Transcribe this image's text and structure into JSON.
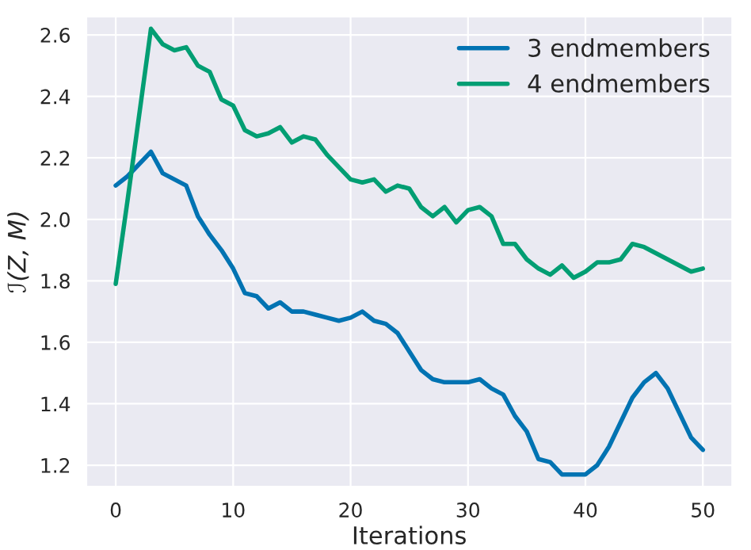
{
  "chart_data": {
    "type": "line",
    "xlabel": "Iterations",
    "ylabel": "ℐ(Z, M)",
    "x": [
      0,
      1,
      2,
      3,
      4,
      5,
      6,
      7,
      8,
      9,
      10,
      11,
      12,
      13,
      14,
      15,
      16,
      17,
      18,
      19,
      20,
      21,
      22,
      23,
      24,
      25,
      26,
      27,
      28,
      29,
      30,
      31,
      32,
      33,
      34,
      35,
      36,
      37,
      38,
      39,
      40,
      41,
      42,
      43,
      44,
      45,
      46,
      47,
      48,
      49,
      50
    ],
    "series": [
      {
        "name": "3 endmembers",
        "color": "#0173b2",
        "values": [
          2.11,
          2.14,
          2.18,
          2.22,
          2.15,
          2.13,
          2.11,
          2.01,
          1.95,
          1.9,
          1.84,
          1.76,
          1.75,
          1.71,
          1.73,
          1.7,
          1.7,
          1.69,
          1.68,
          1.67,
          1.68,
          1.7,
          1.67,
          1.66,
          1.63,
          1.57,
          1.51,
          1.48,
          1.47,
          1.47,
          1.47,
          1.48,
          1.45,
          1.43,
          1.36,
          1.31,
          1.22,
          1.21,
          1.17,
          1.17,
          1.17,
          1.2,
          1.26,
          1.34,
          1.42,
          1.47,
          1.5,
          1.45,
          1.37,
          1.29,
          1.25
        ]
      },
      {
        "name": "4 endmembers",
        "color": "#029e73",
        "values": [
          1.79,
          2.06,
          2.34,
          2.62,
          2.57,
          2.55,
          2.56,
          2.5,
          2.48,
          2.39,
          2.37,
          2.29,
          2.27,
          2.28,
          2.3,
          2.25,
          2.27,
          2.26,
          2.21,
          2.17,
          2.13,
          2.12,
          2.13,
          2.09,
          2.11,
          2.1,
          2.04,
          2.01,
          2.04,
          1.99,
          2.03,
          2.04,
          2.01,
          1.92,
          1.92,
          1.87,
          1.84,
          1.82,
          1.85,
          1.81,
          1.83,
          1.86,
          1.86,
          1.87,
          1.92,
          1.91,
          1.89,
          1.87,
          1.85,
          1.83,
          1.84
        ]
      }
    ],
    "xlim": [
      -2.5,
      52.5
    ],
    "xticks": [
      0,
      10,
      20,
      30,
      40,
      50
    ],
    "ylim": [
      1.13,
      2.66
    ],
    "yticks": [
      {
        "value": 1.2,
        "label": "1.2"
      },
      {
        "value": 1.4,
        "label": "1.4"
      },
      {
        "value": 1.6,
        "label": "1.6"
      },
      {
        "value": 1.8,
        "label": "1.8"
      },
      {
        "value": 2.0,
        "label": "2.0"
      },
      {
        "value": 2.2,
        "label": "2.2"
      },
      {
        "value": 2.4,
        "label": "2.4"
      },
      {
        "value": 2.6,
        "label": "2.6"
      }
    ],
    "grid": true,
    "legend": "top right"
  }
}
